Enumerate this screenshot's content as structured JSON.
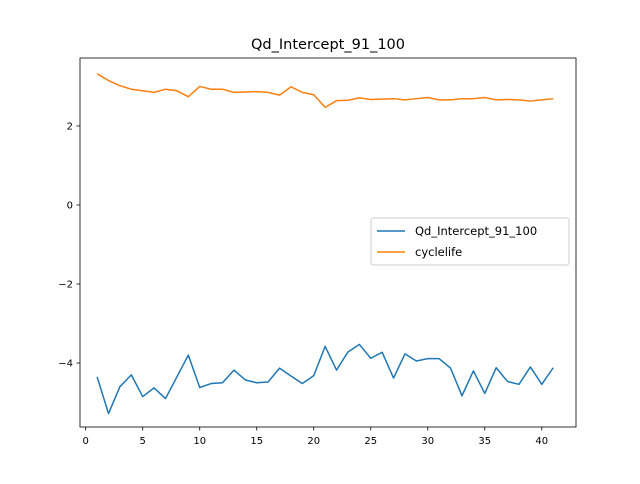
{
  "chart_data": {
    "type": "line",
    "title": "Qd_Intercept_91_100",
    "xlabel": "",
    "ylabel": "",
    "xlim": [
      -0.5,
      43.0
    ],
    "ylim": [
      -5.62,
      3.72
    ],
    "x_ticks": [
      0,
      5,
      10,
      15,
      20,
      25,
      30,
      35,
      40
    ],
    "y_ticks": [
      -4,
      -2,
      0,
      2
    ],
    "y_tick_labels": [
      "−4",
      "−2",
      "0",
      "2"
    ],
    "grid": false,
    "legend_position": "center-right",
    "x": [
      1,
      2,
      3,
      4,
      5,
      6,
      7,
      8,
      9,
      10,
      11,
      12,
      13,
      14,
      15,
      16,
      17,
      18,
      19,
      20,
      21,
      22,
      23,
      24,
      25,
      26,
      27,
      28,
      29,
      30,
      31,
      32,
      33,
      34,
      35,
      36,
      37,
      38,
      39,
      40,
      41
    ],
    "series": [
      {
        "name": "Qd_Intercept_91_100",
        "color": "#1f77b4",
        "values": [
          -4.35,
          -5.28,
          -4.6,
          -4.3,
          -4.85,
          -4.63,
          -4.9,
          -4.35,
          -3.8,
          -4.62,
          -4.52,
          -4.5,
          -4.18,
          -4.43,
          -4.5,
          -4.48,
          -4.13,
          -4.33,
          -4.52,
          -4.32,
          -3.58,
          -4.18,
          -3.72,
          -3.53,
          -3.88,
          -3.73,
          -4.38,
          -3.77,
          -3.95,
          -3.89,
          -3.89,
          -4.13,
          -4.83,
          -4.2,
          -4.77,
          -4.12,
          -4.47,
          -4.54,
          -4.1,
          -4.54,
          -4.12
        ]
      },
      {
        "name": "cyclelife",
        "color": "#ff7f0e",
        "values": [
          3.32,
          3.15,
          3.02,
          2.93,
          2.89,
          2.85,
          2.93,
          2.89,
          2.74,
          3.0,
          2.93,
          2.93,
          2.85,
          2.86,
          2.87,
          2.85,
          2.78,
          2.99,
          2.85,
          2.79,
          2.47,
          2.64,
          2.65,
          2.71,
          2.67,
          2.68,
          2.69,
          2.66,
          2.69,
          2.72,
          2.66,
          2.66,
          2.69,
          2.69,
          2.72,
          2.66,
          2.67,
          2.66,
          2.63,
          2.66,
          2.69
        ]
      }
    ]
  }
}
